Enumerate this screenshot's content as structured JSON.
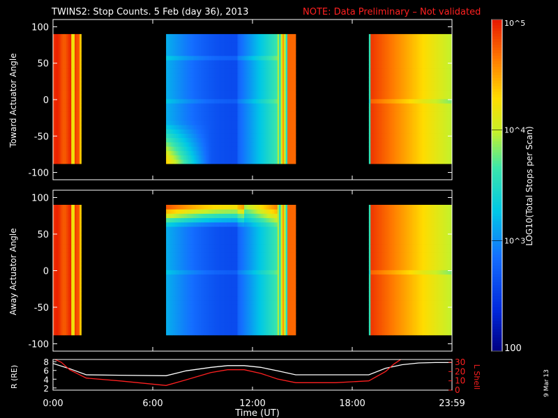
{
  "header": {
    "title": "TWINS2: Stop Counts.  5 Feb (day  36), 2013",
    "note": "NOTE: Data Preliminary – Not validated",
    "note_color": "#ff2020"
  },
  "stamp": "9 Mar 13",
  "colorbar": {
    "label": "LOG10(Total Stops per Scan)",
    "scale": "log",
    "range": [
      100,
      100000
    ],
    "tick_labels": [
      "10^5",
      "10^4",
      "10^3",
      "100"
    ],
    "ticks": [
      100000,
      10000,
      1000,
      100
    ]
  },
  "time_axis": {
    "label": "Time (UT)",
    "range_hours": [
      0,
      24
    ],
    "tick_labels": [
      "0:00",
      "6:00",
      "12:00",
      "18:00",
      "23:59"
    ],
    "ticks_hours": [
      0,
      6,
      12,
      18,
      24
    ]
  },
  "chart_data": [
    {
      "type": "heatmap",
      "id": "toward",
      "ylabel": "Toward Actuator Angle",
      "ylim": [
        -110,
        110
      ],
      "yticks": [
        100,
        50,
        0,
        -50,
        -100
      ],
      "data_coverage_hours": [
        [
          0,
          1.7
        ],
        [
          6.8,
          14.6
        ],
        [
          19.0,
          24
        ]
      ],
      "data_angle_range": [
        -88,
        90
      ],
      "typical_log_counts": {
        "0.0-1.7h": 4.9,
        "6.8-14.6h": 3.0,
        "19.0-24h": 4.8
      }
    },
    {
      "type": "heatmap",
      "id": "away",
      "ylabel": "Away Actuator Angle",
      "ylim": [
        -110,
        110
      ],
      "yticks": [
        100,
        50,
        0,
        -50,
        -100
      ],
      "data_coverage_hours": [
        [
          0,
          1.7
        ],
        [
          6.8,
          14.6
        ],
        [
          19.0,
          24
        ]
      ],
      "data_angle_range": [
        -88,
        90
      ],
      "typical_log_counts": {
        "0.0-1.7h": 4.9,
        "6.8-14.6h": 3.1,
        "19.0-24h": 4.8
      }
    },
    {
      "type": "line",
      "id": "orbit",
      "ylabel_left": "R (RE)",
      "ylabel_right": "L Shell",
      "ylim_left": [
        1.5,
        8.5
      ],
      "yticks_left": [
        2,
        4,
        6,
        8
      ],
      "ylim_right": [
        0,
        33
      ],
      "yticks_right": [
        0,
        10,
        20,
        30
      ],
      "series": [
        {
          "name": "R (RE)",
          "color": "#ffffff",
          "x": [
            0,
            1,
            2,
            4,
            6.8,
            8,
            9.5,
            10.5,
            11.5,
            12.5,
            13.5,
            14.6,
            17,
            19,
            20,
            21,
            22,
            23,
            24
          ],
          "y": [
            7.6,
            6.4,
            5.0,
            4.9,
            4.8,
            5.9,
            6.7,
            7.1,
            7.1,
            6.7,
            5.9,
            5.0,
            5.0,
            5.0,
            6.5,
            7.3,
            7.7,
            7.8,
            7.8
          ]
        },
        {
          "name": "L Shell",
          "color": "#ff2020",
          "x": [
            0,
            0.5,
            1,
            2,
            4,
            6.8,
            8,
            9.5,
            10.5,
            11.5,
            12.5,
            13.5,
            14.6,
            17,
            19,
            20,
            20.5,
            21
          ],
          "y": [
            34,
            30,
            22,
            13,
            10,
            5,
            11,
            19,
            22,
            22,
            18,
            12,
            8,
            8,
            10,
            20,
            28,
            34
          ]
        }
      ]
    }
  ]
}
